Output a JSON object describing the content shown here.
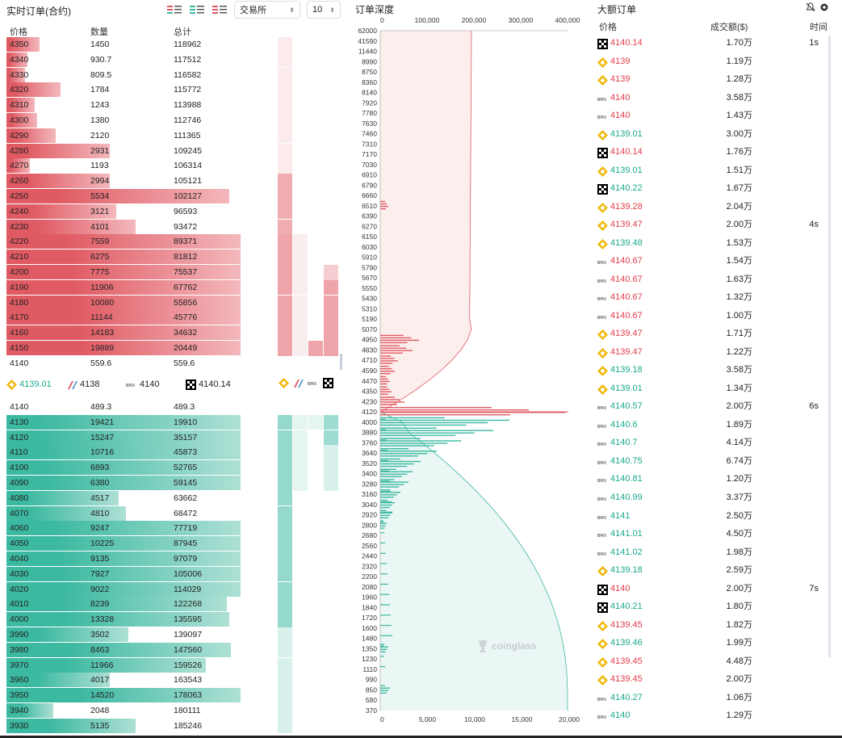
{
  "orderbook": {
    "title": "实时订单(合约)",
    "headers": {
      "price": "价格",
      "qty": "数量",
      "total": "总计"
    },
    "exchange_select": "交易所",
    "depth_select": "10",
    "asks": [
      [
        "4350",
        "1450",
        "118962",
        0.14
      ],
      [
        "4340",
        "930.7",
        "117512",
        0.09
      ],
      [
        "4330",
        "809.5",
        "116582",
        0.08
      ],
      [
        "4320",
        "1784",
        "115772",
        0.23
      ],
      [
        "4310",
        "1243",
        "113988",
        0.12
      ],
      [
        "4300",
        "1380",
        "112746",
        0.13
      ],
      [
        "4290",
        "2120",
        "111365",
        0.21
      ],
      [
        "4280",
        "2931",
        "109245",
        0.44
      ],
      [
        "4270",
        "1193",
        "106314",
        0.1
      ],
      [
        "4260",
        "2994",
        "105121",
        0.44
      ],
      [
        "4250",
        "5534",
        "102127",
        0.95
      ],
      [
        "4240",
        "3121",
        "96593",
        0.47
      ],
      [
        "4230",
        "4101",
        "93472",
        0.55
      ],
      [
        "4220",
        "7559",
        "89371",
        1.0
      ],
      [
        "4210",
        "6275",
        "81812",
        1.0
      ],
      [
        "4200",
        "7775",
        "75537",
        1.0
      ],
      [
        "4190",
        "11906",
        "67762",
        1.0
      ],
      [
        "4180",
        "10080",
        "55856",
        1.0
      ],
      [
        "4170",
        "11144",
        "45776",
        1.0
      ],
      [
        "4160",
        "14183",
        "34632",
        1.0
      ],
      [
        "4150",
        "19889",
        "20449",
        1.0
      ],
      [
        "4140",
        "559.6",
        "559.6",
        0.0
      ]
    ],
    "bids": [
      [
        "4140",
        "489.3",
        "489.3",
        0.0
      ],
      [
        "4130",
        "19421",
        "19910",
        1.0
      ],
      [
        "4120",
        "15247",
        "35157",
        1.0
      ],
      [
        "4110",
        "10716",
        "45873",
        1.0
      ],
      [
        "4100",
        "6893",
        "52765",
        1.0
      ],
      [
        "4090",
        "6380",
        "59145",
        1.0
      ],
      [
        "4080",
        "4517",
        "63662",
        0.48
      ],
      [
        "4070",
        "4810",
        "68472",
        0.51
      ],
      [
        "4060",
        "9247",
        "77719",
        1.0
      ],
      [
        "4050",
        "10225",
        "87945",
        1.0
      ],
      [
        "4040",
        "9135",
        "97079",
        1.0
      ],
      [
        "4030",
        "7927",
        "105006",
        1.0
      ],
      [
        "4020",
        "9022",
        "114029",
        1.0
      ],
      [
        "4010",
        "8239",
        "122268",
        0.94
      ],
      [
        "4000",
        "13328",
        "135595",
        0.95
      ],
      [
        "3990",
        "3502",
        "139097",
        0.52
      ],
      [
        "3980",
        "8463",
        "147560",
        0.96
      ],
      [
        "3970",
        "11966",
        "159526",
        0.85
      ],
      [
        "3960",
        "4017",
        "163543",
        0.44
      ],
      [
        "3950",
        "14520",
        "178063",
        1.0
      ],
      [
        "3940",
        "2048",
        "180111",
        0.2
      ],
      [
        "3930",
        "5135",
        "185246",
        0.55
      ]
    ],
    "mid": [
      {
        "icon": "binance-icon",
        "price": "4139.01"
      },
      {
        "icon": "ftx-icon",
        "price": "4138"
      },
      {
        "icon": "bitmex-icon",
        "price": "4140"
      },
      {
        "icon": "okx-icon",
        "price": "4140.14"
      }
    ]
  },
  "depth": {
    "title": "订单深度",
    "top_ticks": [
      "0",
      "100,000",
      "200,000",
      "300,000",
      "400,000"
    ],
    "bottom_ticks": [
      "0",
      "5,000",
      "10,000",
      "15,000",
      "20,000"
    ],
    "y_ticks": [
      "62000",
      "41590",
      "11440",
      "8990",
      "8750",
      "8360",
      "8140",
      "7920",
      "7780",
      "7630",
      "7460",
      "7310",
      "7170",
      "7030",
      "6910",
      "6790",
      "6660",
      "6510",
      "6390",
      "6270",
      "6150",
      "6030",
      "5910",
      "5790",
      "5670",
      "5550",
      "5430",
      "5310",
      "5190",
      "5070",
      "4950",
      "4830",
      "4710",
      "4590",
      "4470",
      "4350",
      "4230",
      "4120",
      "4000",
      "3880",
      "3760",
      "3640",
      "3520",
      "3400",
      "3280",
      "3160",
      "3040",
      "2920",
      "2800",
      "2680",
      "2560",
      "2440",
      "2320",
      "2200",
      "2080",
      "1960",
      "1840",
      "1720",
      "1600",
      "1480",
      "1350",
      "1230",
      "1110",
      "990",
      "850",
      "580",
      "370"
    ],
    "watermark": "coinglass"
  },
  "large_orders": {
    "title": "大额订单",
    "headers": {
      "price": "价格",
      "amount": "成交额($)",
      "time": "时间"
    },
    "rows": [
      {
        "icon": "okx-icon",
        "price": "4140.14",
        "side": "red",
        "amount": "1.70万",
        "time": "1s"
      },
      {
        "icon": "binance-icon",
        "price": "4139",
        "side": "red",
        "amount": "1.19万",
        "time": ""
      },
      {
        "icon": "binance-icon",
        "price": "4139",
        "side": "red",
        "amount": "1.28万",
        "time": ""
      },
      {
        "icon": "bitmex-icon",
        "price": "4140",
        "side": "red",
        "amount": "3.58万",
        "time": ""
      },
      {
        "icon": "bitmex-icon",
        "price": "4140",
        "side": "red",
        "amount": "1.43万",
        "time": ""
      },
      {
        "icon": "binance-icon",
        "price": "4139.01",
        "side": "green",
        "amount": "3.00万",
        "time": ""
      },
      {
        "icon": "okx-icon",
        "price": "4140.14",
        "side": "red",
        "amount": "1.76万",
        "time": ""
      },
      {
        "icon": "binance-icon",
        "price": "4139.01",
        "side": "green",
        "amount": "1.51万",
        "time": ""
      },
      {
        "icon": "okx-icon",
        "price": "4140.22",
        "side": "green",
        "amount": "1.67万",
        "time": ""
      },
      {
        "icon": "binance-icon",
        "price": "4139.28",
        "side": "red",
        "amount": "2.04万",
        "time": ""
      },
      {
        "icon": "binance-icon",
        "price": "4139.47",
        "side": "red",
        "amount": "2.00万",
        "time": "4s"
      },
      {
        "icon": "binance-icon",
        "price": "4139.48",
        "side": "green",
        "amount": "1.53万",
        "time": ""
      },
      {
        "icon": "bitmex-icon",
        "price": "4140.67",
        "side": "red",
        "amount": "1.54万",
        "time": ""
      },
      {
        "icon": "bitmex-icon",
        "price": "4140.67",
        "side": "red",
        "amount": "1.63万",
        "time": ""
      },
      {
        "icon": "bitmex-icon",
        "price": "4140.67",
        "side": "red",
        "amount": "1.32万",
        "time": ""
      },
      {
        "icon": "bitmex-icon",
        "price": "4140.67",
        "side": "red",
        "amount": "1.00万",
        "time": ""
      },
      {
        "icon": "binance-icon",
        "price": "4139.47",
        "side": "red",
        "amount": "1.71万",
        "time": ""
      },
      {
        "icon": "binance-icon",
        "price": "4139.47",
        "side": "red",
        "amount": "1.22万",
        "time": ""
      },
      {
        "icon": "binance-icon",
        "price": "4139.18",
        "side": "green",
        "amount": "3.58万",
        "time": ""
      },
      {
        "icon": "binance-icon",
        "price": "4139.01",
        "side": "green",
        "amount": "1.34万",
        "time": ""
      },
      {
        "icon": "bitmex-icon",
        "price": "4140.57",
        "side": "green",
        "amount": "2.00万",
        "time": "6s"
      },
      {
        "icon": "bitmex-icon",
        "price": "4140.6",
        "side": "green",
        "amount": "1.89万",
        "time": ""
      },
      {
        "icon": "bitmex-icon",
        "price": "4140.7",
        "side": "green",
        "amount": "4.14万",
        "time": ""
      },
      {
        "icon": "bitmex-icon",
        "price": "4140.75",
        "side": "green",
        "amount": "6.74万",
        "time": ""
      },
      {
        "icon": "bitmex-icon",
        "price": "4140.81",
        "side": "green",
        "amount": "1.20万",
        "time": ""
      },
      {
        "icon": "bitmex-icon",
        "price": "4140.99",
        "side": "green",
        "amount": "3.37万",
        "time": ""
      },
      {
        "icon": "bitmex-icon",
        "price": "4141",
        "side": "green",
        "amount": "2.50万",
        "time": ""
      },
      {
        "icon": "bitmex-icon",
        "price": "4141.01",
        "side": "green",
        "amount": "4.50万",
        "time": ""
      },
      {
        "icon": "bitmex-icon",
        "price": "4141.02",
        "side": "green",
        "amount": "1.98万",
        "time": ""
      },
      {
        "icon": "binance-icon",
        "price": "4139.18",
        "side": "green",
        "amount": "2.59万",
        "time": ""
      },
      {
        "icon": "okx-icon",
        "price": "4140",
        "side": "red",
        "amount": "2.00万",
        "time": "7s"
      },
      {
        "icon": "okx-icon",
        "price": "4140.21",
        "side": "green",
        "amount": "1.80万",
        "time": ""
      },
      {
        "icon": "binance-icon",
        "price": "4139.45",
        "side": "red",
        "amount": "1.82万",
        "time": ""
      },
      {
        "icon": "binance-icon",
        "price": "4139.46",
        "side": "green",
        "amount": "1.99万",
        "time": ""
      },
      {
        "icon": "binance-icon",
        "price": "4139.45",
        "side": "red",
        "amount": "4.48万",
        "time": ""
      },
      {
        "icon": "binance-icon",
        "price": "4139.45",
        "side": "red",
        "amount": "2.00万",
        "time": ""
      },
      {
        "icon": "bitmex-icon",
        "price": "4140.27",
        "side": "green",
        "amount": "1.06万",
        "time": ""
      },
      {
        "icon": "bitmex-icon",
        "price": "4140",
        "side": "green",
        "amount": "1.29万",
        "time": ""
      }
    ]
  },
  "colors": {
    "ask": "#e05a63",
    "bid": "#3cb9a1",
    "ask_light": "#f3b8bc",
    "bid_light": "#aee0d5"
  }
}
